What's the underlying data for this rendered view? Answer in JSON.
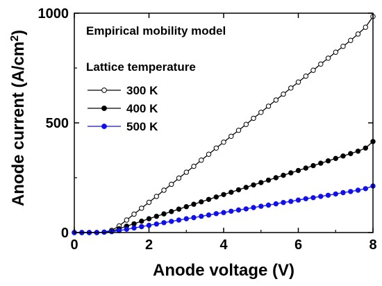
{
  "chart_data": {
    "type": "line",
    "title": "",
    "xlabel": "Anode voltage (V)",
    "ylabel": "Anode current (A/cm²)",
    "ylabel_parts": {
      "pre": "Anode current (A/cm",
      "sup": "2",
      "post": ")"
    },
    "xlim": [
      0,
      8
    ],
    "ylim": [
      0,
      1000
    ],
    "xticks": [
      0,
      2,
      4,
      6,
      8
    ],
    "yticks": [
      0,
      500,
      1000
    ],
    "grid": false,
    "annotation": "Empirical mobility model",
    "legend_title": "Lattice temperature",
    "legend_position": "top-left",
    "x": [
      0.0,
      0.2,
      0.4,
      0.6,
      0.8,
      1.0,
      1.2,
      1.4,
      1.6,
      1.8,
      2.0,
      2.2,
      2.4,
      2.6,
      2.8,
      3.0,
      3.2,
      3.4,
      3.6,
      3.8,
      4.0,
      4.2,
      4.4,
      4.6,
      4.8,
      5.0,
      5.2,
      5.4,
      5.6,
      5.8,
      6.0,
      6.2,
      6.4,
      6.6,
      6.8,
      7.0,
      7.2,
      7.4,
      7.6,
      7.8,
      8.0
    ],
    "series": [
      {
        "name": "300 K",
        "color": "#000000",
        "marker": "open-circle",
        "values": [
          0,
          0,
          0,
          0,
          2,
          10,
          30,
          57,
          84,
          111,
          138,
          165,
          193,
          220,
          248,
          275,
          302,
          330,
          357,
          385,
          412,
          439,
          466,
          493,
          521,
          548,
          576,
          604,
          631,
          659,
          686,
          713,
          740,
          768,
          795,
          822,
          849,
          876,
          905,
          936,
          985
        ]
      },
      {
        "name": "400 K",
        "color": "#000000",
        "marker": "filled-circle",
        "values": [
          0,
          0,
          0,
          0,
          2,
          6,
          17,
          29,
          40,
          52,
          63,
          74,
          85,
          96,
          107,
          118,
          129,
          140,
          151,
          162,
          173,
          184,
          195,
          206,
          217,
          228,
          239,
          250,
          261,
          272,
          283,
          294,
          305,
          316,
          327,
          338,
          349,
          360,
          371,
          385,
          415
        ]
      },
      {
        "name": "500 K",
        "color": "#1010ee",
        "marker": "filled-circle",
        "values": [
          0,
          0,
          0,
          0,
          2,
          4,
          9,
          15,
          21,
          27,
          33,
          39,
          45,
          51,
          57,
          63,
          68,
          74,
          80,
          86,
          91,
          97,
          103,
          108,
          114,
          120,
          125,
          131,
          137,
          142,
          148,
          154,
          159,
          165,
          170,
          176,
          182,
          187,
          193,
          200,
          212
        ]
      }
    ]
  }
}
